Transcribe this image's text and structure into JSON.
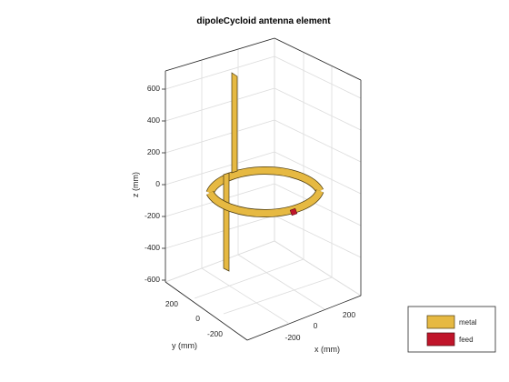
{
  "figure": {
    "title": "dipoleCycloid antenna element"
  },
  "axes": {
    "z_label": "z (mm)",
    "y_label": "y (mm)",
    "x_label": "x (mm)",
    "z_ticks": [
      "600",
      "400",
      "200",
      "0",
      "-200",
      "-400",
      "-600"
    ],
    "y_ticks": [
      "200",
      "0",
      "-200"
    ],
    "x_ticks": [
      "-200",
      "0",
      "200"
    ]
  },
  "legend": {
    "items": [
      {
        "label": "metal",
        "color": "#e6b942"
      },
      {
        "label": "feed",
        "color": "#c0152a"
      }
    ]
  },
  "colors": {
    "metal": "#e6b942",
    "metal_edge": "#4a3a10",
    "feed": "#c0152a",
    "axis": "#262626",
    "grid": "#dcdcdc"
  }
}
